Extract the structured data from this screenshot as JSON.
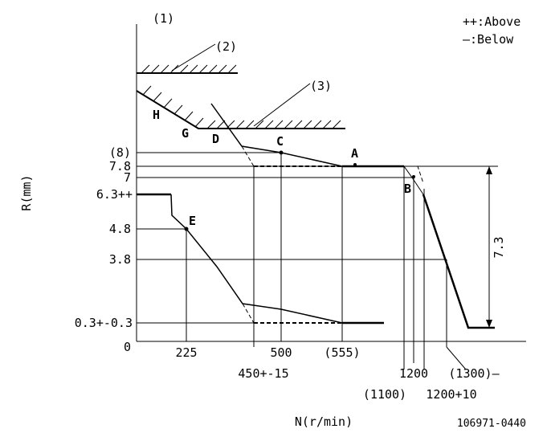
{
  "legend": {
    "above": "++:Above",
    "below": "—:Below"
  },
  "callouts": {
    "c1": "(1)",
    "c2": "(2)",
    "c3": "(3)"
  },
  "y_axis": {
    "label": "R(mm)",
    "ticks": [
      "(8)",
      "7.8",
      "7",
      "6.3++",
      "4.8",
      "3.8",
      "0.3+-0.3",
      "0"
    ]
  },
  "x_axis": {
    "label": "N(r/min)",
    "ticks": [
      "225",
      "500",
      "(555)",
      "450+-15",
      "1200",
      "(1100)",
      "1200+10",
      "(1300)—"
    ]
  },
  "points": {
    "A": "A",
    "B": "B",
    "C": "C",
    "D": "D",
    "E": "E",
    "G": "G",
    "H": "H"
  },
  "dimension": "7.3",
  "figure_id": "106971-0440"
}
